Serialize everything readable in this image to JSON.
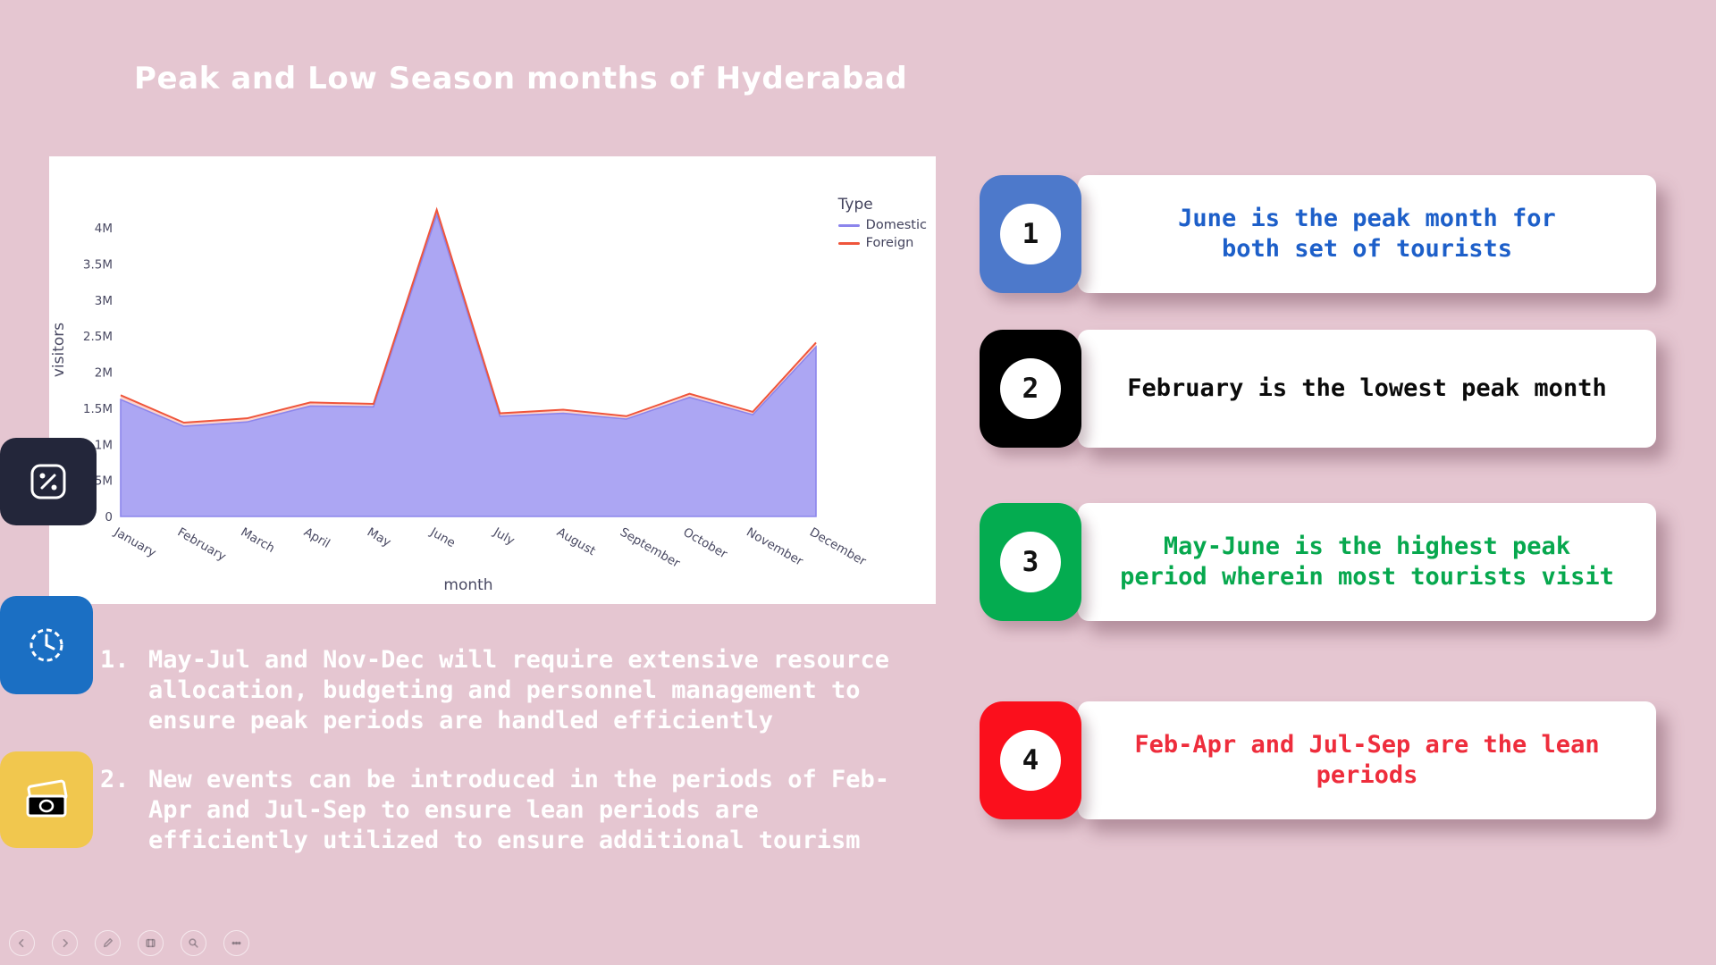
{
  "page": {
    "bg": "#E5C6D1",
    "title": "Peak and Low Season months of Hyderabad"
  },
  "chart_data": {
    "type": "area",
    "stacked": true,
    "x": [
      "January",
      "February",
      "March",
      "April",
      "May",
      "June",
      "July",
      "August",
      "September",
      "October",
      "November",
      "December"
    ],
    "xlabel": "month",
    "ylabel": "visitors",
    "ytick_values": [
      0,
      0.5,
      1,
      1.5,
      2,
      2.5,
      3,
      3.5,
      4
    ],
    "ytick_labels": [
      "0",
      "0.5M",
      "1M",
      "1.5M",
      "2M",
      "2.5M",
      "3M",
      "3.5M",
      "4M"
    ],
    "ylim_M": [
      0,
      4.4
    ],
    "grid": false,
    "legend_position": "top-right",
    "legend_title": "Type",
    "series": [
      {
        "name": "Domestic",
        "color": "#8C85EC",
        "fill": "#ACA6F3",
        "values_M": [
          1.62,
          1.25,
          1.31,
          1.53,
          1.52,
          4.18,
          1.39,
          1.43,
          1.35,
          1.65,
          1.41,
          2.35
        ]
      },
      {
        "name": "Foreign",
        "color": "#EF553B",
        "fill": "rgba(239,85,59,0.25)",
        "values_M": [
          0.06,
          0.05,
          0.05,
          0.05,
          0.04,
          0.07,
          0.04,
          0.05,
          0.04,
          0.05,
          0.04,
          0.06
        ]
      }
    ]
  },
  "notes": [
    {
      "number": "1.",
      "text": "May-Jul and Nov-Dec will require extensive resource\nallocation, budgeting and personnel management to\nensure peak periods are handled efficiently"
    },
    {
      "number": "2.",
      "text": "New events can be introduced in the periods of Feb-\nApr and Jul-Sep to ensure lean periods are\nefficiently utilized to ensure additional tourism"
    }
  ],
  "cards": [
    {
      "number": "1",
      "tab_color": "#4D79CB",
      "text_color": "#1D5FC9",
      "text": "June is the peak month for\nboth set of tourists"
    },
    {
      "number": "2",
      "tab_color": "#000000",
      "text_color": "#0B0B0B",
      "text": "February is the lowest peak month"
    },
    {
      "number": "3",
      "tab_color": "#04AC50",
      "text_color": "#07A84E",
      "text": "May-June is the highest peak\nperiod wherein most tourists visit"
    },
    {
      "number": "4",
      "tab_color": "#FB0F1C",
      "text_color": "#EE2D3C",
      "text": "Feb-Apr and Jul-Sep are the lean\nperiods"
    }
  ],
  "side_icons": [
    {
      "name": "percent-badge",
      "bg": "#23263A"
    },
    {
      "name": "clock-badge",
      "bg": "#1B6FC3"
    },
    {
      "name": "cash-badge",
      "bg": "#F1C74E"
    }
  ],
  "toolbar": {
    "buttons": [
      "previous",
      "next",
      "draw",
      "media",
      "zoom",
      "more"
    ]
  }
}
